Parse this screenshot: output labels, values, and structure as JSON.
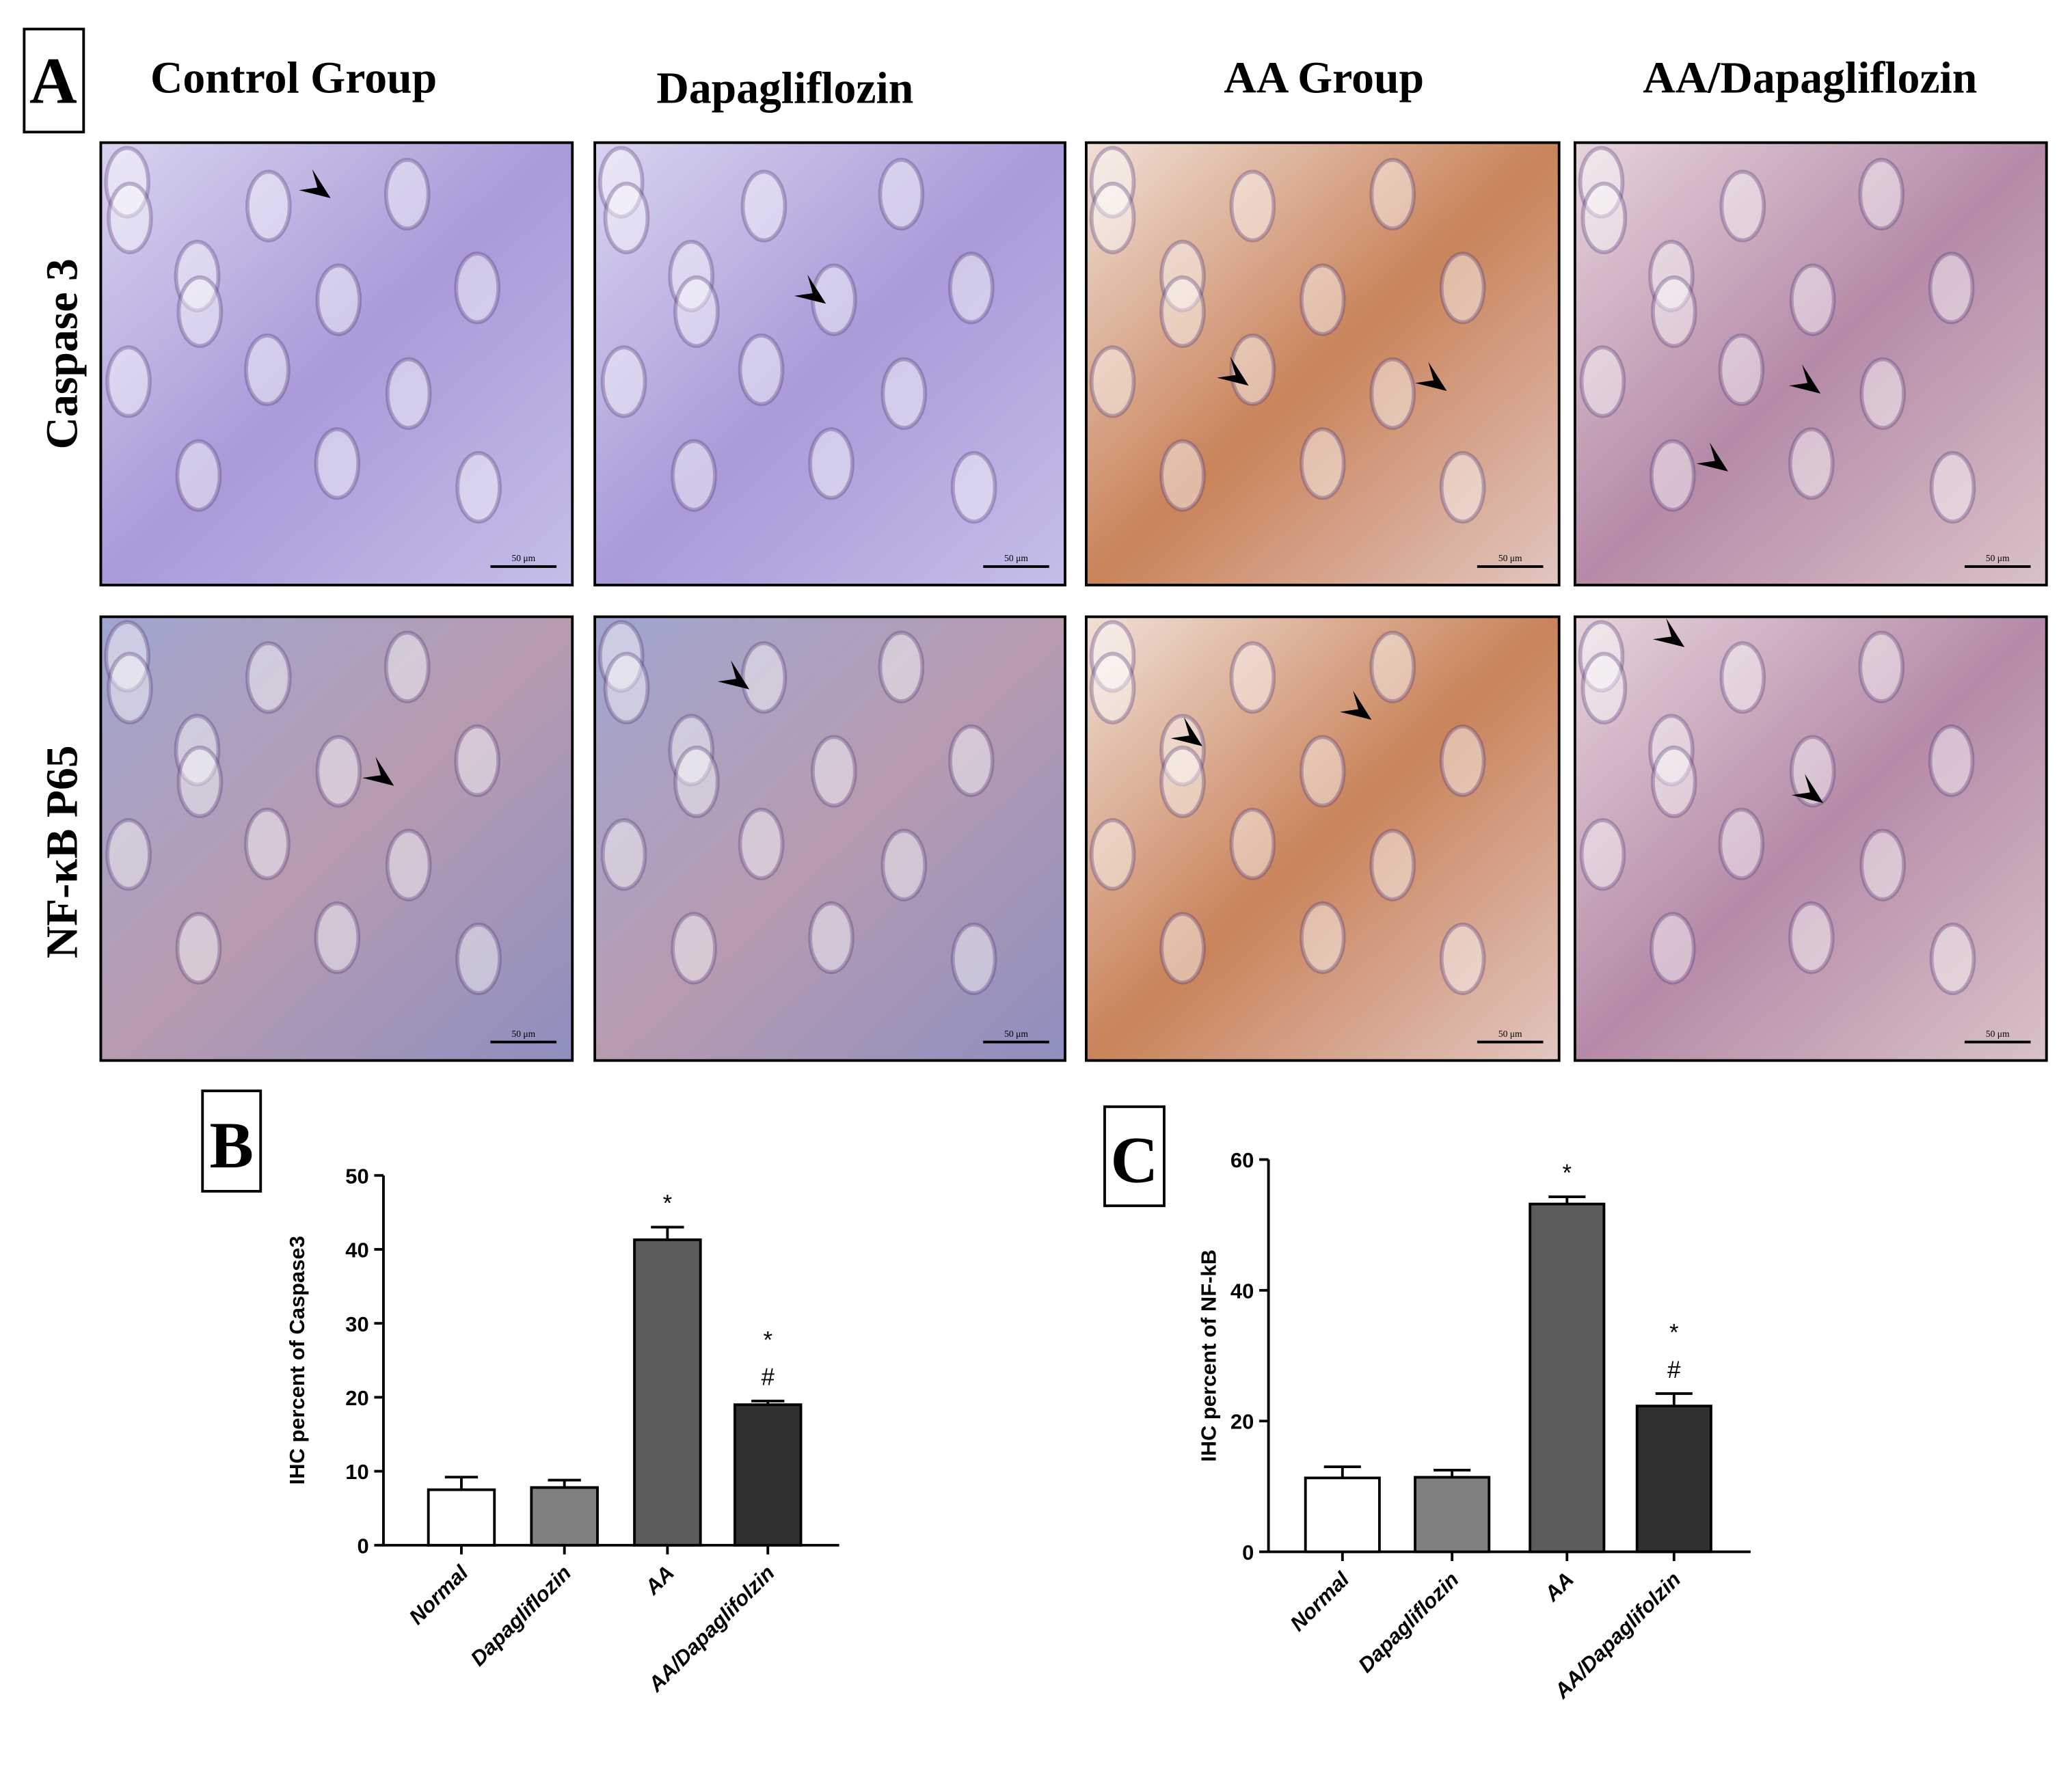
{
  "figure": {
    "panel_label": "A",
    "columns": [
      "Control Group",
      "Dapagliflozin",
      "AA Group",
      "AA/Dapagliflozin"
    ],
    "rows": [
      "Caspase 3",
      "NF-κB P65"
    ],
    "scale_bar": "50 μm"
  },
  "chart_data": [
    {
      "type": "bar",
      "panel_label": "B",
      "ylabel": "IHC percent of Caspase3",
      "categories": [
        "Normal",
        "Dapagliflozin",
        "AA",
        "AA/Dapaglifolzin"
      ],
      "values": [
        7.5,
        7.8,
        41.3,
        19.0
      ],
      "errors": [
        1.7,
        1.0,
        1.7,
        0.5
      ],
      "colors": [
        "#ffffff",
        "#808080",
        "#5c5c5c",
        "#303030"
      ],
      "significance": [
        null,
        null,
        [
          "*"
        ],
        [
          "*",
          "#"
        ]
      ],
      "ylim": [
        0,
        50
      ],
      "yticks": [
        0,
        10,
        20,
        30,
        40,
        50
      ]
    },
    {
      "type": "bar",
      "panel_label": "C",
      "ylabel": "IHC percent of NF-kB",
      "categories": [
        "Normal",
        "Dapagliflozin",
        "AA",
        "AA/Dapaglifolzin"
      ],
      "values": [
        11.3,
        11.4,
        53.2,
        22.3
      ],
      "errors": [
        1.7,
        1.1,
        1.1,
        1.9
      ],
      "colors": [
        "#ffffff",
        "#808080",
        "#5c5c5c",
        "#303030"
      ],
      "significance": [
        null,
        null,
        [
          "*"
        ],
        [
          "*",
          "#"
        ]
      ],
      "ylim": [
        0,
        60
      ],
      "yticks": [
        0,
        20,
        40,
        60
      ]
    }
  ]
}
